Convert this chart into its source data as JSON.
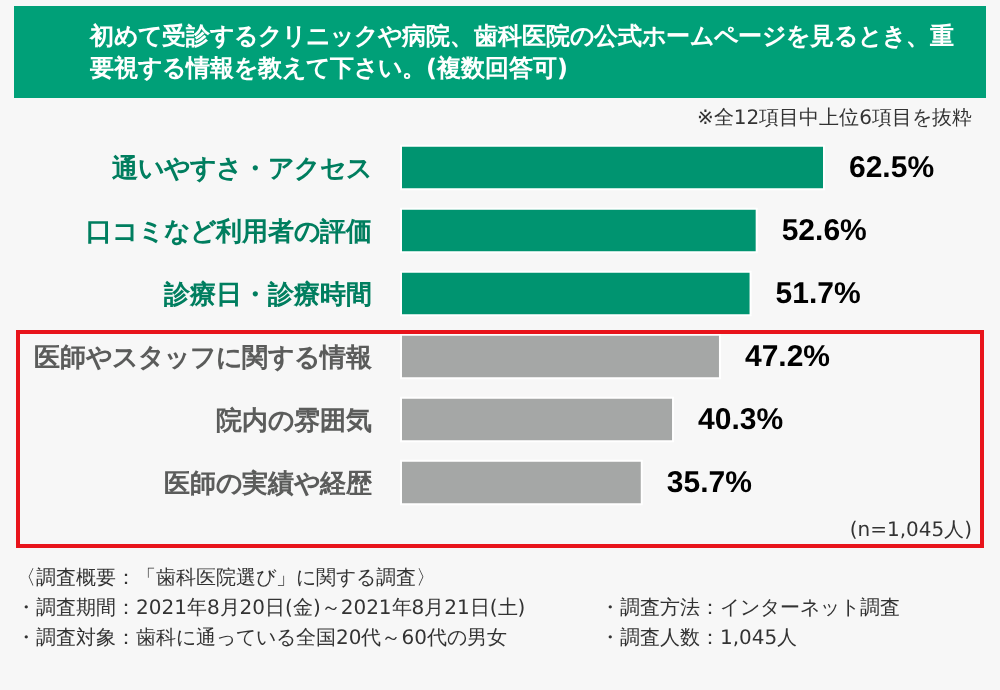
{
  "chart_data": {
    "type": "bar",
    "orientation": "horizontal",
    "title": "初めて受診するクリニックや病院、歯科医院の公式ホームページを見るとき、重要視する情報を教えて下さい。(複数回答可)",
    "categories": [
      "通いやすさ・アクセス",
      "口コミなど利用者の評価",
      "診療日・診療時間",
      "医師やスタッフに関する情報",
      "院内の雰囲気",
      "医師の実績や経歴"
    ],
    "values": [
      62.5,
      52.6,
      51.7,
      47.2,
      40.3,
      35.7
    ],
    "value_labels": [
      "62.5%",
      "52.6%",
      "51.7%",
      "47.2%",
      "40.3%",
      "35.7%"
    ],
    "colors": [
      "#009470",
      "#009470",
      "#009470",
      "#a5a7a6",
      "#a5a7a6",
      "#a5a7a6"
    ],
    "annotations": [
      "※全12項目中上位6項目を抜粋",
      "(n=1,045人)",
      "〈調査概要：「歯科医院選び」に関する調査〉",
      "・調査期間：2021年8月20日(金)～2021年8月21日(土)",
      "・調査方法：インターネット調査",
      "・調査対象：歯科に通っている全国20代～60代の男女",
      "・調査人数：1,045人"
    ]
  }
}
